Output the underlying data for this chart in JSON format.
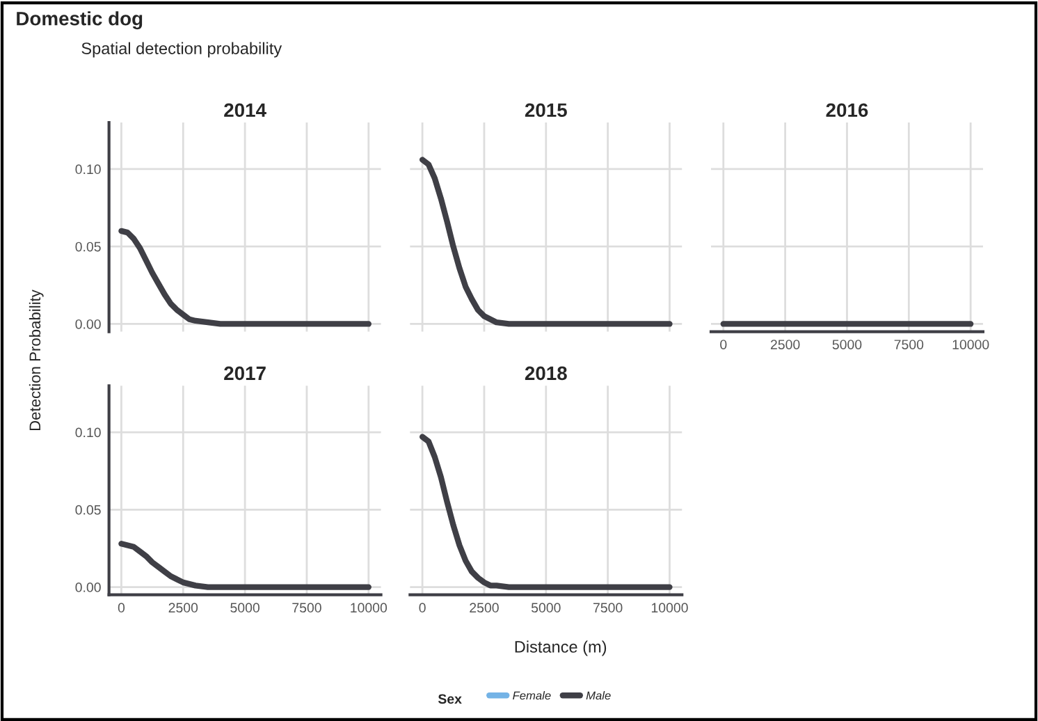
{
  "chart_data": [
    {
      "type": "line",
      "title": "Domestic dog",
      "subtitle": "Spatial detection probability",
      "ylabel": "Detection Probability",
      "legend_title": "Sex",
      "legend": "bottom",
      "annotations": [
        "2014"
      ],
      "tick_labels": "y",
      "grid": true,
      "xlim": [
        -500,
        10500
      ],
      "ylim": [
        -0.005,
        0.13
      ],
      "xticks": [
        {
          "value": 0,
          "label": null
        },
        {
          "value": 2500,
          "label": null
        },
        {
          "value": 5000,
          "label": null
        },
        {
          "value": 7500,
          "label": null
        },
        {
          "value": 10000,
          "label": null
        }
      ],
      "yticks": [
        {
          "value": 0,
          "label": "0.00"
        },
        {
          "value": 0.05,
          "label": "0.05"
        },
        {
          "value": 0.1,
          "label": "0.10"
        }
      ],
      "x": [
        0,
        250,
        500,
        750,
        1000,
        1250,
        1500,
        1750,
        2000,
        2250,
        2500,
        2750,
        3000,
        3500,
        4000,
        5000,
        7500,
        10000
      ],
      "series": [
        {
          "name": "Female",
          "color": "#74b3e6",
          "values": [
            null,
            null,
            null,
            null,
            null,
            null,
            null,
            null,
            null,
            null,
            null,
            null,
            null,
            null,
            null,
            null,
            null,
            null
          ]
        },
        {
          "name": "Male",
          "color": "#3f3f46",
          "values": [
            0.06,
            0.059,
            0.055,
            0.049,
            0.041,
            0.033,
            0.026,
            0.019,
            0.013,
            0.009,
            0.006,
            0.003,
            0.002,
            0.001,
            0,
            0,
            0,
            0
          ]
        }
      ]
    },
    {
      "type": "line",
      "annotations": [
        "2015"
      ],
      "tick_labels": false,
      "grid": true,
      "xlim": [
        -500,
        10500
      ],
      "ylim": [
        -0.005,
        0.13
      ],
      "xticks": [
        {
          "value": 0,
          "label": null
        },
        {
          "value": 2500,
          "label": null
        },
        {
          "value": 5000,
          "label": null
        },
        {
          "value": 7500,
          "label": null
        },
        {
          "value": 10000,
          "label": null
        }
      ],
      "yticks": [
        {
          "value": 0,
          "label": null
        },
        {
          "value": 0.05,
          "label": null
        },
        {
          "value": 0.1,
          "label": null
        }
      ],
      "x": [
        0,
        250,
        500,
        750,
        1000,
        1250,
        1500,
        1750,
        2000,
        2250,
        2500,
        2750,
        3000,
        3500,
        4000,
        5000,
        7500,
        10000
      ],
      "series": [
        {
          "color": "#74b3e6",
          "values": [
            null,
            null,
            null,
            null,
            null,
            null,
            null,
            null,
            null,
            null,
            null,
            null,
            null,
            null,
            null,
            null,
            null,
            null
          ]
        },
        {
          "color": "#3f3f46",
          "values": [
            0.106,
            0.103,
            0.094,
            0.081,
            0.066,
            0.05,
            0.036,
            0.024,
            0.016,
            0.009,
            0.005,
            0.003,
            0.001,
            0,
            0,
            0,
            0,
            0
          ]
        }
      ]
    },
    {
      "type": "line",
      "annotations": [
        "2016"
      ],
      "tick_labels": "x",
      "grid": true,
      "xlim": [
        -500,
        10500
      ],
      "ylim": [
        -0.005,
        0.13
      ],
      "xticks": [
        0,
        2500,
        5000,
        7500,
        10000
      ],
      "yticks": [
        {
          "value": 0,
          "label": null
        },
        {
          "value": 0.05,
          "label": null
        },
        {
          "value": 0.1,
          "label": null
        }
      ],
      "x": [
        0,
        2500,
        5000,
        7500,
        10000
      ],
      "series": [
        {
          "color": "#74b3e6",
          "values": [
            null,
            null,
            null,
            null,
            null
          ]
        },
        {
          "color": "#3f3f46",
          "values": [
            0,
            0,
            0,
            0,
            0
          ]
        }
      ]
    },
    {
      "type": "line",
      "annotations": [
        "2017"
      ],
      "grid": true,
      "xlim": [
        -500,
        10500
      ],
      "ylim": [
        -0.005,
        0.13
      ],
      "xticks": [
        0,
        2500,
        5000,
        7500,
        10000
      ],
      "yticks": [
        {
          "value": 0,
          "label": "0.00"
        },
        {
          "value": 0.05,
          "label": "0.05"
        },
        {
          "value": 0.1,
          "label": "0.10"
        }
      ],
      "x": [
        0,
        250,
        500,
        750,
        1000,
        1250,
        1500,
        1750,
        2000,
        2250,
        2500,
        2750,
        3000,
        3500,
        4000,
        5000,
        7500,
        10000
      ],
      "series": [
        {
          "color": "#74b3e6",
          "values": [
            null,
            null,
            null,
            null,
            null,
            null,
            null,
            null,
            null,
            null,
            null,
            null,
            null,
            null,
            null,
            null,
            null,
            null
          ]
        },
        {
          "color": "#3f3f46",
          "values": [
            0.028,
            0.027,
            0.026,
            0.023,
            0.02,
            0.016,
            0.013,
            0.01,
            0.007,
            0.005,
            0.003,
            0.002,
            0.001,
            0,
            0,
            0,
            0,
            0
          ]
        }
      ]
    },
    {
      "type": "line",
      "xlabel": "Distance (m)",
      "annotations": [
        "2018"
      ],
      "tick_labels": "x",
      "grid": true,
      "xlim": [
        -500,
        10500
      ],
      "ylim": [
        -0.005,
        0.13
      ],
      "xticks": [
        0,
        2500,
        5000,
        7500,
        10000
      ],
      "yticks": [
        {
          "value": 0,
          "label": null
        },
        {
          "value": 0.05,
          "label": null
        },
        {
          "value": 0.1,
          "label": null
        }
      ],
      "x": [
        0,
        250,
        500,
        750,
        1000,
        1250,
        1500,
        1750,
        2000,
        2250,
        2500,
        2750,
        3000,
        3500,
        4000,
        5000,
        7500,
        10000
      ],
      "series": [
        {
          "color": "#74b3e6",
          "values": [
            null,
            null,
            null,
            null,
            null,
            null,
            null,
            null,
            null,
            null,
            null,
            null,
            null,
            null,
            null,
            null,
            null,
            null
          ]
        },
        {
          "color": "#3f3f46",
          "values": [
            0.097,
            0.094,
            0.084,
            0.071,
            0.055,
            0.04,
            0.027,
            0.017,
            0.01,
            0.006,
            0.003,
            0.001,
            0.001,
            0,
            0,
            0,
            0,
            0
          ]
        }
      ]
    }
  ]
}
